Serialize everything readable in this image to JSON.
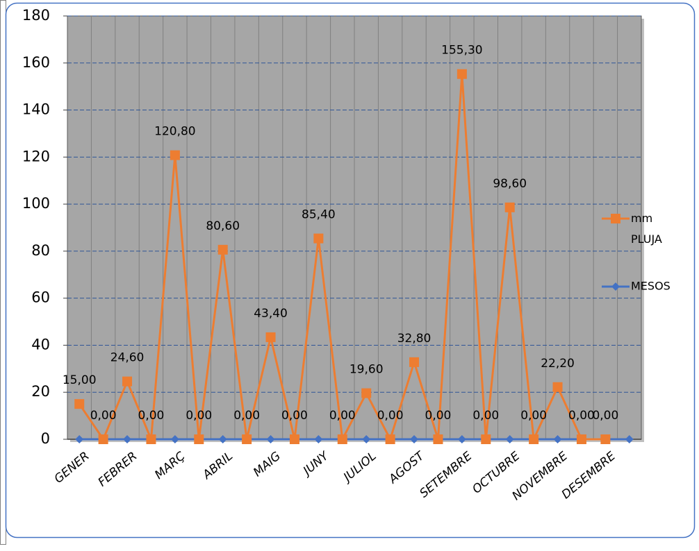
{
  "chart_data": {
    "type": "line",
    "categories": [
      "GENER",
      null,
      "FEBRER",
      null,
      "MARÇ",
      null,
      "ABRIL",
      null,
      "MAIG",
      null,
      "JUNY",
      null,
      "JULIOL",
      null,
      "AGOST",
      null,
      "SETEMBRE",
      null,
      "OCTUBRE",
      null,
      "NOVEMBRE",
      null,
      "DESEMBRE",
      null
    ],
    "series": [
      {
        "name": "mm PLUJA",
        "color": "#ed7d31",
        "marker": "square",
        "values": [
          15,
          0,
          24.6,
          0,
          120.8,
          0,
          80.6,
          0,
          43.4,
          0,
          85.4,
          0,
          19.6,
          0,
          32.8,
          0,
          155.3,
          0,
          98.6,
          0,
          22.2,
          0,
          0,
          null
        ],
        "value_labels": [
          "15,00",
          "0,00",
          "24,60",
          "0,00",
          "120,80",
          "0,00",
          "80,60",
          "0,00",
          "43,40",
          "0,00",
          "85,40",
          "0,00",
          "19,60",
          "0,00",
          "32,80",
          "0,00",
          "155,30",
          "0,00",
          "98,60",
          "0,00",
          "22,20",
          "0,00",
          "0,00",
          null
        ]
      },
      {
        "name": "MESOS",
        "color": "#4472c4",
        "marker": "diamond",
        "values": [
          0,
          0,
          0,
          0,
          0,
          0,
          0,
          0,
          0,
          0,
          0,
          0,
          0,
          0,
          0,
          0,
          0,
          0,
          0,
          0,
          0,
          0,
          0,
          0
        ]
      }
    ],
    "ylim": [
      0,
      180
    ],
    "yticks": [
      0,
      20,
      40,
      60,
      80,
      100,
      120,
      140,
      160,
      180
    ],
    "grid": true,
    "legend": "right"
  }
}
